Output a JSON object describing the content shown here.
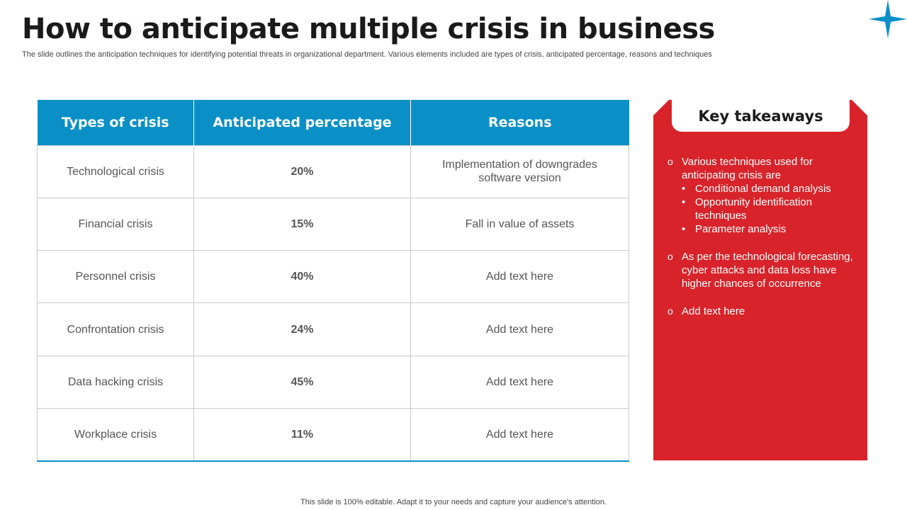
{
  "slide": {
    "title": "How to anticipate multiple crisis in business",
    "subtitle": "The slide outlines the anticipation techniques for identifying potential threats in organizational department. Various elements included are types of crisis, anticipated percentage, reasons and techniques",
    "footer": "This slide is 100% editable. Adapt it to your needs and capture your audience's attention.",
    "accent_blue": "#0b8fc7",
    "accent_red": "#d8232a",
    "decor_icon": "four-point-star-icon"
  },
  "table": {
    "headers": [
      "Types of crisis",
      "Anticipated percentage",
      "Reasons"
    ],
    "rows": [
      {
        "type": "Technological crisis",
        "pct": "20%",
        "reason": "Implementation of downgrades software version"
      },
      {
        "type": "Financial crisis",
        "pct": "15%",
        "reason": "Fall in value of assets"
      },
      {
        "type": "Personnel crisis",
        "pct": "40%",
        "reason": "Add text here"
      },
      {
        "type": "Confrontation crisis",
        "pct": "24%",
        "reason": "Add text here"
      },
      {
        "type": "Data hacking crisis",
        "pct": "45%",
        "reason": "Add text here"
      },
      {
        "type": "Workplace crisis",
        "pct": "11%",
        "reason": "Add text here"
      }
    ]
  },
  "takeaways": {
    "title": "Key takeaways",
    "bullet_glyph": "o",
    "sub_glyph": "•",
    "points": [
      {
        "text": "Various techniques used for anticipating crisis are",
        "subs": [
          "Conditional demand analysis",
          "Opportunity identification techniques",
          "Parameter analysis"
        ]
      },
      {
        "text": "As per the technological forecasting, cyber attacks and data loss have higher chances of occurrence",
        "subs": []
      },
      {
        "text": "Add text here",
        "subs": []
      }
    ]
  }
}
